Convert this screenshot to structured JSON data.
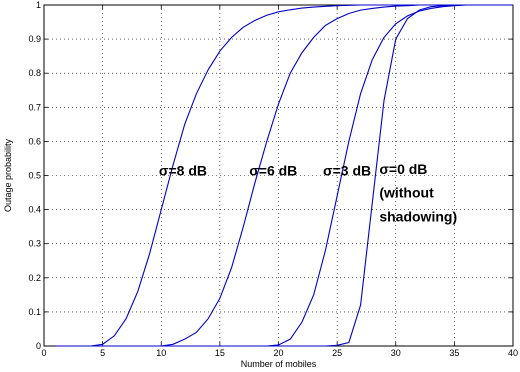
{
  "chart_data": {
    "type": "line",
    "title": "",
    "xlabel": "Number of mobiles",
    "ylabel": "Outage probability",
    "xlim": [
      0,
      40
    ],
    "ylim": [
      0,
      1
    ],
    "xticks": [
      0,
      5,
      10,
      15,
      20,
      25,
      30,
      35,
      40
    ],
    "yticks": [
      0,
      0.1,
      0.2,
      0.3,
      0.4,
      0.5,
      0.6,
      0.7,
      0.8,
      0.9,
      1
    ],
    "xtick_labels": [
      "0",
      "5",
      "10",
      "15",
      "20",
      "25",
      "30",
      "35",
      "40"
    ],
    "ytick_labels": [
      "0",
      "0.1",
      "0.2",
      "0.3",
      "0.4",
      "0.5",
      "0.6",
      "0.7",
      "0.8",
      "0.9",
      "1"
    ],
    "grid": true,
    "line_color": "#0000cc",
    "series": [
      {
        "x": [
          1,
          2,
          3,
          4,
          5,
          6,
          7,
          8,
          9,
          10,
          11,
          12,
          13,
          14,
          15,
          16,
          17,
          18,
          19,
          20,
          21,
          22,
          23,
          24,
          25,
          26,
          27,
          28,
          29,
          30,
          31,
          32,
          33,
          34,
          35,
          36,
          37,
          38,
          39,
          40
        ],
        "y": [
          0,
          0,
          0,
          0,
          0.005,
          0.03,
          0.08,
          0.16,
          0.27,
          0.4,
          0.53,
          0.65,
          0.74,
          0.81,
          0.865,
          0.905,
          0.935,
          0.955,
          0.97,
          0.98,
          0.986,
          0.991,
          0.994,
          0.996,
          0.998,
          0.999,
          1,
          1,
          1,
          1,
          1,
          1,
          1,
          1,
          1,
          1,
          1,
          1,
          1,
          1
        ]
      },
      {
        "x": [
          1,
          2,
          3,
          4,
          5,
          6,
          7,
          8,
          9,
          10,
          11,
          12,
          13,
          14,
          15,
          16,
          17,
          18,
          19,
          20,
          21,
          22,
          23,
          24,
          25,
          26,
          27,
          28,
          29,
          30,
          31,
          32,
          33,
          34,
          35,
          36,
          37,
          38,
          39,
          40
        ],
        "y": [
          0,
          0,
          0,
          0,
          0,
          0,
          0,
          0,
          0,
          0,
          0.005,
          0.02,
          0.04,
          0.08,
          0.14,
          0.23,
          0.35,
          0.48,
          0.6,
          0.71,
          0.8,
          0.86,
          0.905,
          0.94,
          0.96,
          0.975,
          0.985,
          0.99,
          0.994,
          0.997,
          0.998,
          1,
          1,
          1,
          1,
          1,
          1,
          1,
          1,
          1
        ]
      },
      {
        "x": [
          1,
          2,
          3,
          4,
          5,
          6,
          7,
          8,
          9,
          10,
          11,
          12,
          13,
          14,
          15,
          16,
          17,
          18,
          19,
          20,
          21,
          22,
          23,
          24,
          25,
          26,
          27,
          28,
          29,
          30,
          31,
          32,
          33,
          34,
          35,
          36,
          37,
          38,
          39,
          40
        ],
        "y": [
          0,
          0,
          0,
          0,
          0,
          0,
          0,
          0,
          0,
          0,
          0,
          0,
          0,
          0,
          0,
          0,
          0,
          0,
          0,
          0.003,
          0.02,
          0.07,
          0.15,
          0.28,
          0.44,
          0.6,
          0.74,
          0.84,
          0.905,
          0.945,
          0.968,
          0.982,
          0.99,
          0.995,
          0.998,
          1,
          1,
          1,
          1,
          1
        ]
      },
      {
        "x": [
          1,
          2,
          3,
          4,
          5,
          6,
          7,
          8,
          9,
          10,
          11,
          12,
          13,
          14,
          15,
          16,
          17,
          18,
          19,
          20,
          21,
          22,
          23,
          24,
          25,
          26,
          27,
          28,
          29,
          30,
          31,
          32,
          33,
          34,
          35,
          36,
          37,
          38,
          39,
          40
        ],
        "y": [
          0,
          0,
          0,
          0,
          0,
          0,
          0,
          0,
          0,
          0,
          0,
          0,
          0,
          0,
          0,
          0,
          0,
          0,
          0,
          0,
          0,
          0,
          0,
          0,
          0.002,
          0.01,
          0.12,
          0.42,
          0.72,
          0.9,
          0.96,
          0.985,
          0.995,
          0.998,
          1,
          1,
          1,
          1,
          1,
          1
        ]
      }
    ],
    "annotations": [
      {
        "text": "σ=8 dB",
        "x": 9.8,
        "y": 0.5
      },
      {
        "text": "σ=6 dB",
        "x": 17.5,
        "y": 0.5
      },
      {
        "text": "σ=3 dB",
        "x": 23.8,
        "y": 0.5
      },
      {
        "text": "σ=0 dB",
        "x": 28.6,
        "y": 0.505
      },
      {
        "text": "(without",
        "x": 28.6,
        "y": 0.435
      },
      {
        "text": "shadowing)",
        "x": 28.6,
        "y": 0.365
      }
    ]
  }
}
